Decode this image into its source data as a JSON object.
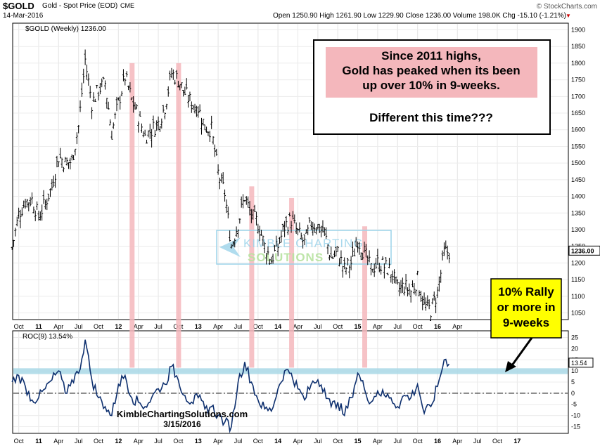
{
  "header": {
    "symbol": "$GOLD",
    "description": "Gold - Spot Price (EOD)",
    "exchange": "CME",
    "date": "14-Mar-2016",
    "quote": "Open 1250.90  High 1261.90  Low 1229.90  Close 1236.00  Volume 198.0K  Chg -15.10 (-1.21%)",
    "down_arrow": "▼",
    "copyright": "© StockCharts.com"
  },
  "annotations": {
    "callout_line1": "Since 2011 highs,",
    "callout_line2": "Gold has peaked when its been",
    "callout_line3": "up over 10% in 9-weeks.",
    "callout_question": "Different this time???",
    "rally_line1": "10% Rally",
    "rally_line2": "or more in",
    "rally_line3": "9-weeks",
    "watermark_1": "KIMBLE CHARTING",
    "watermark_2": "SOLUTIONS",
    "site": "KimbleChartingSolutions.com",
    "site_date": "3/15/2016"
  },
  "colors": {
    "price": "#000000",
    "roc": "#0d2f6e",
    "highlight": "#f4b7bc",
    "band": "#a9d8e6",
    "rally_box": "#ffff00",
    "callout_fill": "#f4b7bc"
  },
  "chart_data": [
    {
      "type": "line",
      "title": "$GOLD (Weekly) 1236.00",
      "style": "ohlc-bars",
      "last_value_label": "1236.00",
      "ylim": [
        1030,
        1920
      ],
      "y_ticks": [
        1050,
        1100,
        1150,
        1200,
        1250,
        1300,
        1350,
        1400,
        1450,
        1500,
        1550,
        1600,
        1650,
        1700,
        1750,
        1800,
        1850,
        1900
      ],
      "x_ticks": [
        "Oct",
        "11",
        "Apr",
        "Jul",
        "Oct",
        "12",
        "Apr",
        "Jul",
        "Oct",
        "13",
        "Apr",
        "Jul",
        "Oct",
        "14",
        "Apr",
        "Jul",
        "Oct",
        "15",
        "Apr",
        "Jul",
        "Oct",
        "16",
        "Apr"
      ],
      "grid": true,
      "x": [
        "2010-09",
        "2010-10",
        "2010-11",
        "2010-12",
        "2011-01",
        "2011-02",
        "2011-03",
        "2011-04",
        "2011-05",
        "2011-06",
        "2011-07",
        "2011-08",
        "2011-09",
        "2011-10",
        "2011-11",
        "2011-12",
        "2012-01",
        "2012-02",
        "2012-03",
        "2012-04",
        "2012-05",
        "2012-06",
        "2012-07",
        "2012-08",
        "2012-09",
        "2012-10",
        "2012-11",
        "2012-12",
        "2013-01",
        "2013-02",
        "2013-03",
        "2013-04",
        "2013-05",
        "2013-06",
        "2013-07",
        "2013-08",
        "2013-09",
        "2013-10",
        "2013-11",
        "2013-12",
        "2014-01",
        "2014-02",
        "2014-03",
        "2014-04",
        "2014-05",
        "2014-06",
        "2014-07",
        "2014-08",
        "2014-09",
        "2014-10",
        "2014-11",
        "2014-12",
        "2015-01",
        "2015-02",
        "2015-03",
        "2015-04",
        "2015-05",
        "2015-06",
        "2015-07",
        "2015-08",
        "2015-09",
        "2015-10",
        "2015-11",
        "2015-12",
        "2016-01",
        "2016-02",
        "2016-03"
      ],
      "values": [
        1245,
        1345,
        1385,
        1390,
        1340,
        1380,
        1430,
        1520,
        1500,
        1505,
        1610,
        1810,
        1680,
        1720,
        1740,
        1590,
        1680,
        1760,
        1690,
        1640,
        1580,
        1600,
        1620,
        1670,
        1770,
        1750,
        1710,
        1680,
        1665,
        1610,
        1600,
        1470,
        1410,
        1250,
        1320,
        1400,
        1340,
        1320,
        1250,
        1210,
        1250,
        1310,
        1330,
        1290,
        1260,
        1320,
        1310,
        1290,
        1215,
        1230,
        1180,
        1200,
        1270,
        1230,
        1180,
        1200,
        1190,
        1175,
        1120,
        1130,
        1115,
        1150,
        1070,
        1060,
        1110,
        1230,
        1236
      ]
    },
    {
      "type": "line",
      "title": "ROC(9) 13.54%",
      "series": [
        {
          "name": "ROC(9)",
          "values": [
            5,
            8,
            3,
            -3,
            -2,
            2,
            6,
            10,
            0,
            6,
            9,
            24,
            6,
            -2,
            -6,
            -10,
            4,
            8,
            -2,
            -4,
            -6,
            -2,
            2,
            4,
            12,
            6,
            -1,
            -4,
            -2,
            -7,
            -6,
            -10,
            -13,
            -15,
            5,
            14,
            5,
            -3,
            -7,
            -8,
            2,
            10,
            9,
            2,
            -3,
            4,
            6,
            2,
            -6,
            -4,
            -10,
            -2,
            9,
            2,
            -4,
            1,
            -1,
            -2,
            -6,
            -1,
            -2,
            4,
            -9,
            -6,
            3,
            15,
            13.54
          ]
        }
      ],
      "last_value_label": "13.54",
      "ylim": [
        -18,
        28
      ],
      "y_ticks": [
        -15,
        -10,
        -5,
        0,
        5,
        10,
        15,
        20,
        25
      ],
      "reference_lines": [
        0,
        10
      ],
      "x_ticks": [
        "Oct",
        "11",
        "Apr",
        "Jul",
        "Oct",
        "12",
        "Apr",
        "Jul",
        "Oct",
        "13",
        "Apr",
        "Jul",
        "Oct",
        "14",
        "Apr",
        "Jul",
        "Oct",
        "15",
        "Apr",
        "Jul",
        "Oct",
        "16",
        "Apr",
        "Jul",
        "Oct",
        "17"
      ],
      "grid": true
    }
  ]
}
